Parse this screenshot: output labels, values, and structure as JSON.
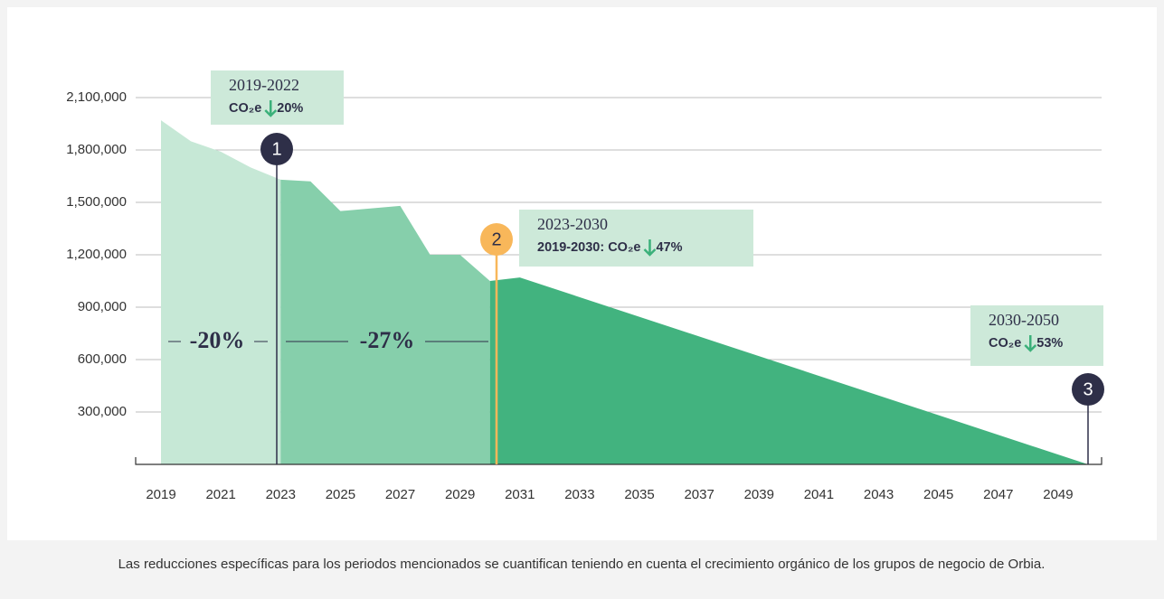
{
  "chart_data": {
    "type": "area",
    "series": [
      {
        "color": "#c6e8d6",
        "x": [
          2019,
          2020,
          2021,
          2022,
          2023
        ],
        "values": [
          1970000,
          1850000,
          1790000,
          1700000,
          1630000
        ]
      },
      {
        "color": "#86cfab",
        "x": [
          2023,
          2024,
          2025,
          2026,
          2027,
          2028,
          2029,
          2030
        ],
        "values": [
          1630000,
          1620000,
          1450000,
          1465000,
          1480000,
          1200000,
          1200000,
          1050000
        ]
      },
      {
        "color": "#42b37f",
        "x": [
          2030,
          2031,
          2050
        ],
        "values": [
          1050000,
          1070000,
          0
        ]
      }
    ],
    "xlim": [
      2019,
      2050
    ],
    "xticks": [
      2019,
      2021,
      2023,
      2025,
      2027,
      2029,
      2031,
      2033,
      2035,
      2037,
      2039,
      2041,
      2043,
      2045,
      2047,
      2049
    ],
    "ylim": [
      0,
      2100000
    ],
    "yticks": [
      {
        "value": 300000,
        "label": "300,000"
      },
      {
        "value": 600000,
        "label": "600,000"
      },
      {
        "value": 900000,
        "label": "900,000"
      },
      {
        "value": 1200000,
        "label": "1,200,000"
      },
      {
        "value": 1500000,
        "label": "1,500,000"
      },
      {
        "value": 1800000,
        "label": "1,800,000"
      },
      {
        "value": 2100000,
        "label": "2,100,000"
      }
    ],
    "grid": true,
    "annotations": [
      {
        "period": "2019-2022",
        "metric": "CO₂e",
        "change": "20%",
        "marker": "1"
      },
      {
        "period": "2023-2030",
        "metric": "2019-2030: CO₂e",
        "change": "47%",
        "marker": "2"
      },
      {
        "period": "2030-2050",
        "metric": "CO₂e",
        "change": "53%",
        "marker": "3"
      }
    ],
    "segment_labels": [
      "-20%",
      "-27%"
    ],
    "footnote": "Las reducciones específicas para los periodos mencionados se cuantifican teniendo en cuenta el crecimiento orgánico de los grupos de negocio de Orbia."
  }
}
